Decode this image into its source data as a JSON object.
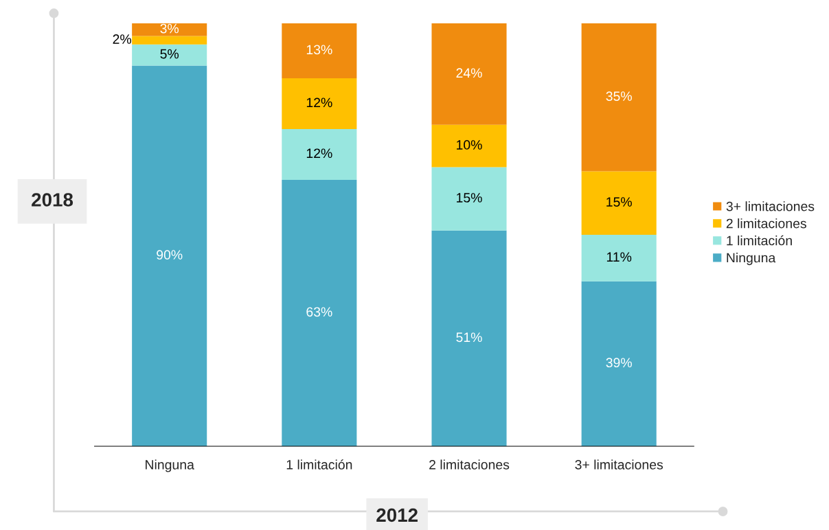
{
  "chart_data": {
    "type": "bar",
    "stacked": true,
    "xlabel": "2012",
    "ylabel": "2018",
    "categories": [
      "Ninguna",
      "1 limitación",
      "2 limitaciones",
      "3+ limitaciones"
    ],
    "series": [
      {
        "name": "Ninguna",
        "color": "#4bacc6",
        "values": [
          90,
          63,
          51,
          39
        ],
        "value_labels": [
          "90%",
          "63%",
          "51%",
          "39%"
        ]
      },
      {
        "name": "1 limitación",
        "color": "#98e6df",
        "values": [
          5,
          12,
          15,
          11
        ],
        "value_labels": [
          "5%",
          "12%",
          "15%",
          "11%"
        ]
      },
      {
        "name": "2 limitaciones",
        "color": "#ffc000",
        "values": [
          2,
          12,
          10,
          15
        ],
        "value_labels": [
          "2%",
          "12%",
          "10%",
          "15%"
        ]
      },
      {
        "name": "3+ limitaciones",
        "color": "#f08c0f",
        "values": [
          3,
          13,
          24,
          35
        ],
        "value_labels": [
          "3%",
          "13%",
          "24%",
          "35%"
        ]
      }
    ],
    "legend": "right",
    "grid": false
  }
}
